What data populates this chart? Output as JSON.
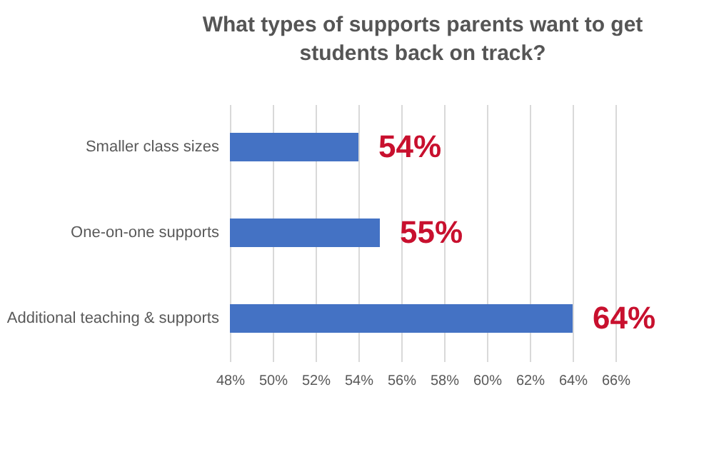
{
  "chart_data": {
    "type": "bar",
    "orientation": "horizontal",
    "title": "What types of supports parents want to get students back on track?",
    "categories": [
      "Smaller class sizes",
      "One-on-one supports",
      "Additional teaching & supports"
    ],
    "values": [
      54,
      55,
      64
    ],
    "color": "#4472c4",
    "value_labels": [
      "54%",
      "55%",
      "64%"
    ],
    "xlim": [
      48,
      66
    ],
    "xticks": [
      {
        "value": 48,
        "label": "48%"
      },
      {
        "value": 50,
        "label": "50%"
      },
      {
        "value": 52,
        "label": "52%"
      },
      {
        "value": 54,
        "label": "54%"
      },
      {
        "value": 56,
        "label": "56%"
      },
      {
        "value": 58,
        "label": "58%"
      },
      {
        "value": 60,
        "label": "60%"
      },
      {
        "value": 62,
        "label": "62%"
      },
      {
        "value": 64,
        "label": "64%"
      },
      {
        "value": 66,
        "label": "66%"
      }
    ],
    "grid": true
  }
}
